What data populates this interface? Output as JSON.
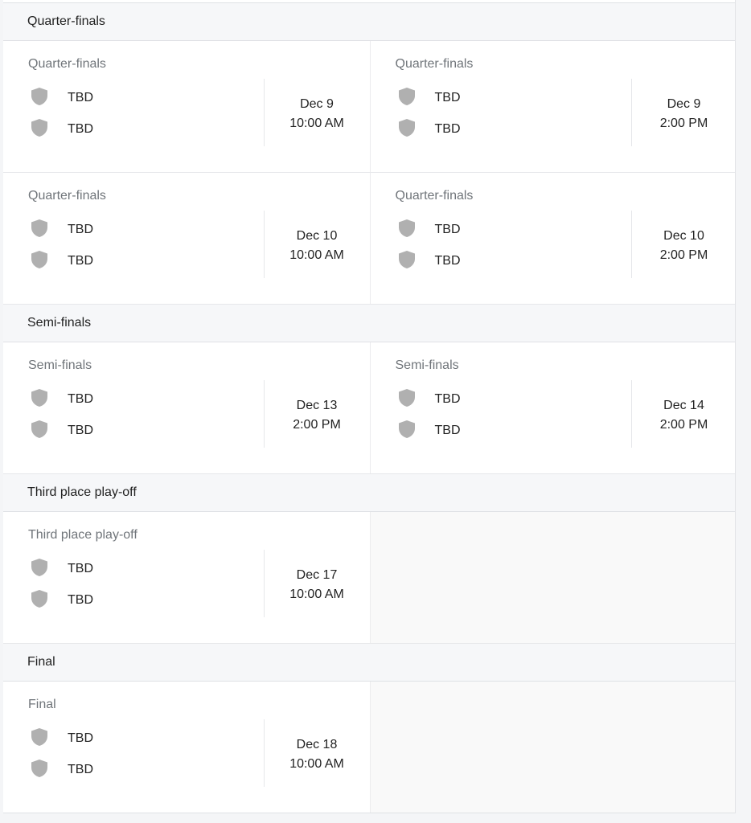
{
  "shield_color": "#b0b0b0",
  "sections": [
    {
      "title": "Quarter-finals",
      "matches": [
        {
          "label": "Quarter-finals",
          "team1": "TBD",
          "team2": "TBD",
          "date": "Dec 9",
          "time": "10:00 AM"
        },
        {
          "label": "Quarter-finals",
          "team1": "TBD",
          "team2": "TBD",
          "date": "Dec 9",
          "time": "2:00 PM"
        },
        {
          "label": "Quarter-finals",
          "team1": "TBD",
          "team2": "TBD",
          "date": "Dec 10",
          "time": "10:00 AM"
        },
        {
          "label": "Quarter-finals",
          "team1": "TBD",
          "team2": "TBD",
          "date": "Dec 10",
          "time": "2:00 PM"
        }
      ]
    },
    {
      "title": "Semi-finals",
      "matches": [
        {
          "label": "Semi-finals",
          "team1": "TBD",
          "team2": "TBD",
          "date": "Dec 13",
          "time": "2:00 PM"
        },
        {
          "label": "Semi-finals",
          "team1": "TBD",
          "team2": "TBD",
          "date": "Dec 14",
          "time": "2:00 PM"
        }
      ]
    },
    {
      "title": "Third place play-off",
      "matches": [
        {
          "label": "Third place play-off",
          "team1": "TBD",
          "team2": "TBD",
          "date": "Dec 17",
          "time": "10:00 AM"
        }
      ]
    },
    {
      "title": "Final",
      "matches": [
        {
          "label": "Final",
          "team1": "TBD",
          "team2": "TBD",
          "date": "Dec 18",
          "time": "10:00 AM"
        }
      ]
    }
  ]
}
